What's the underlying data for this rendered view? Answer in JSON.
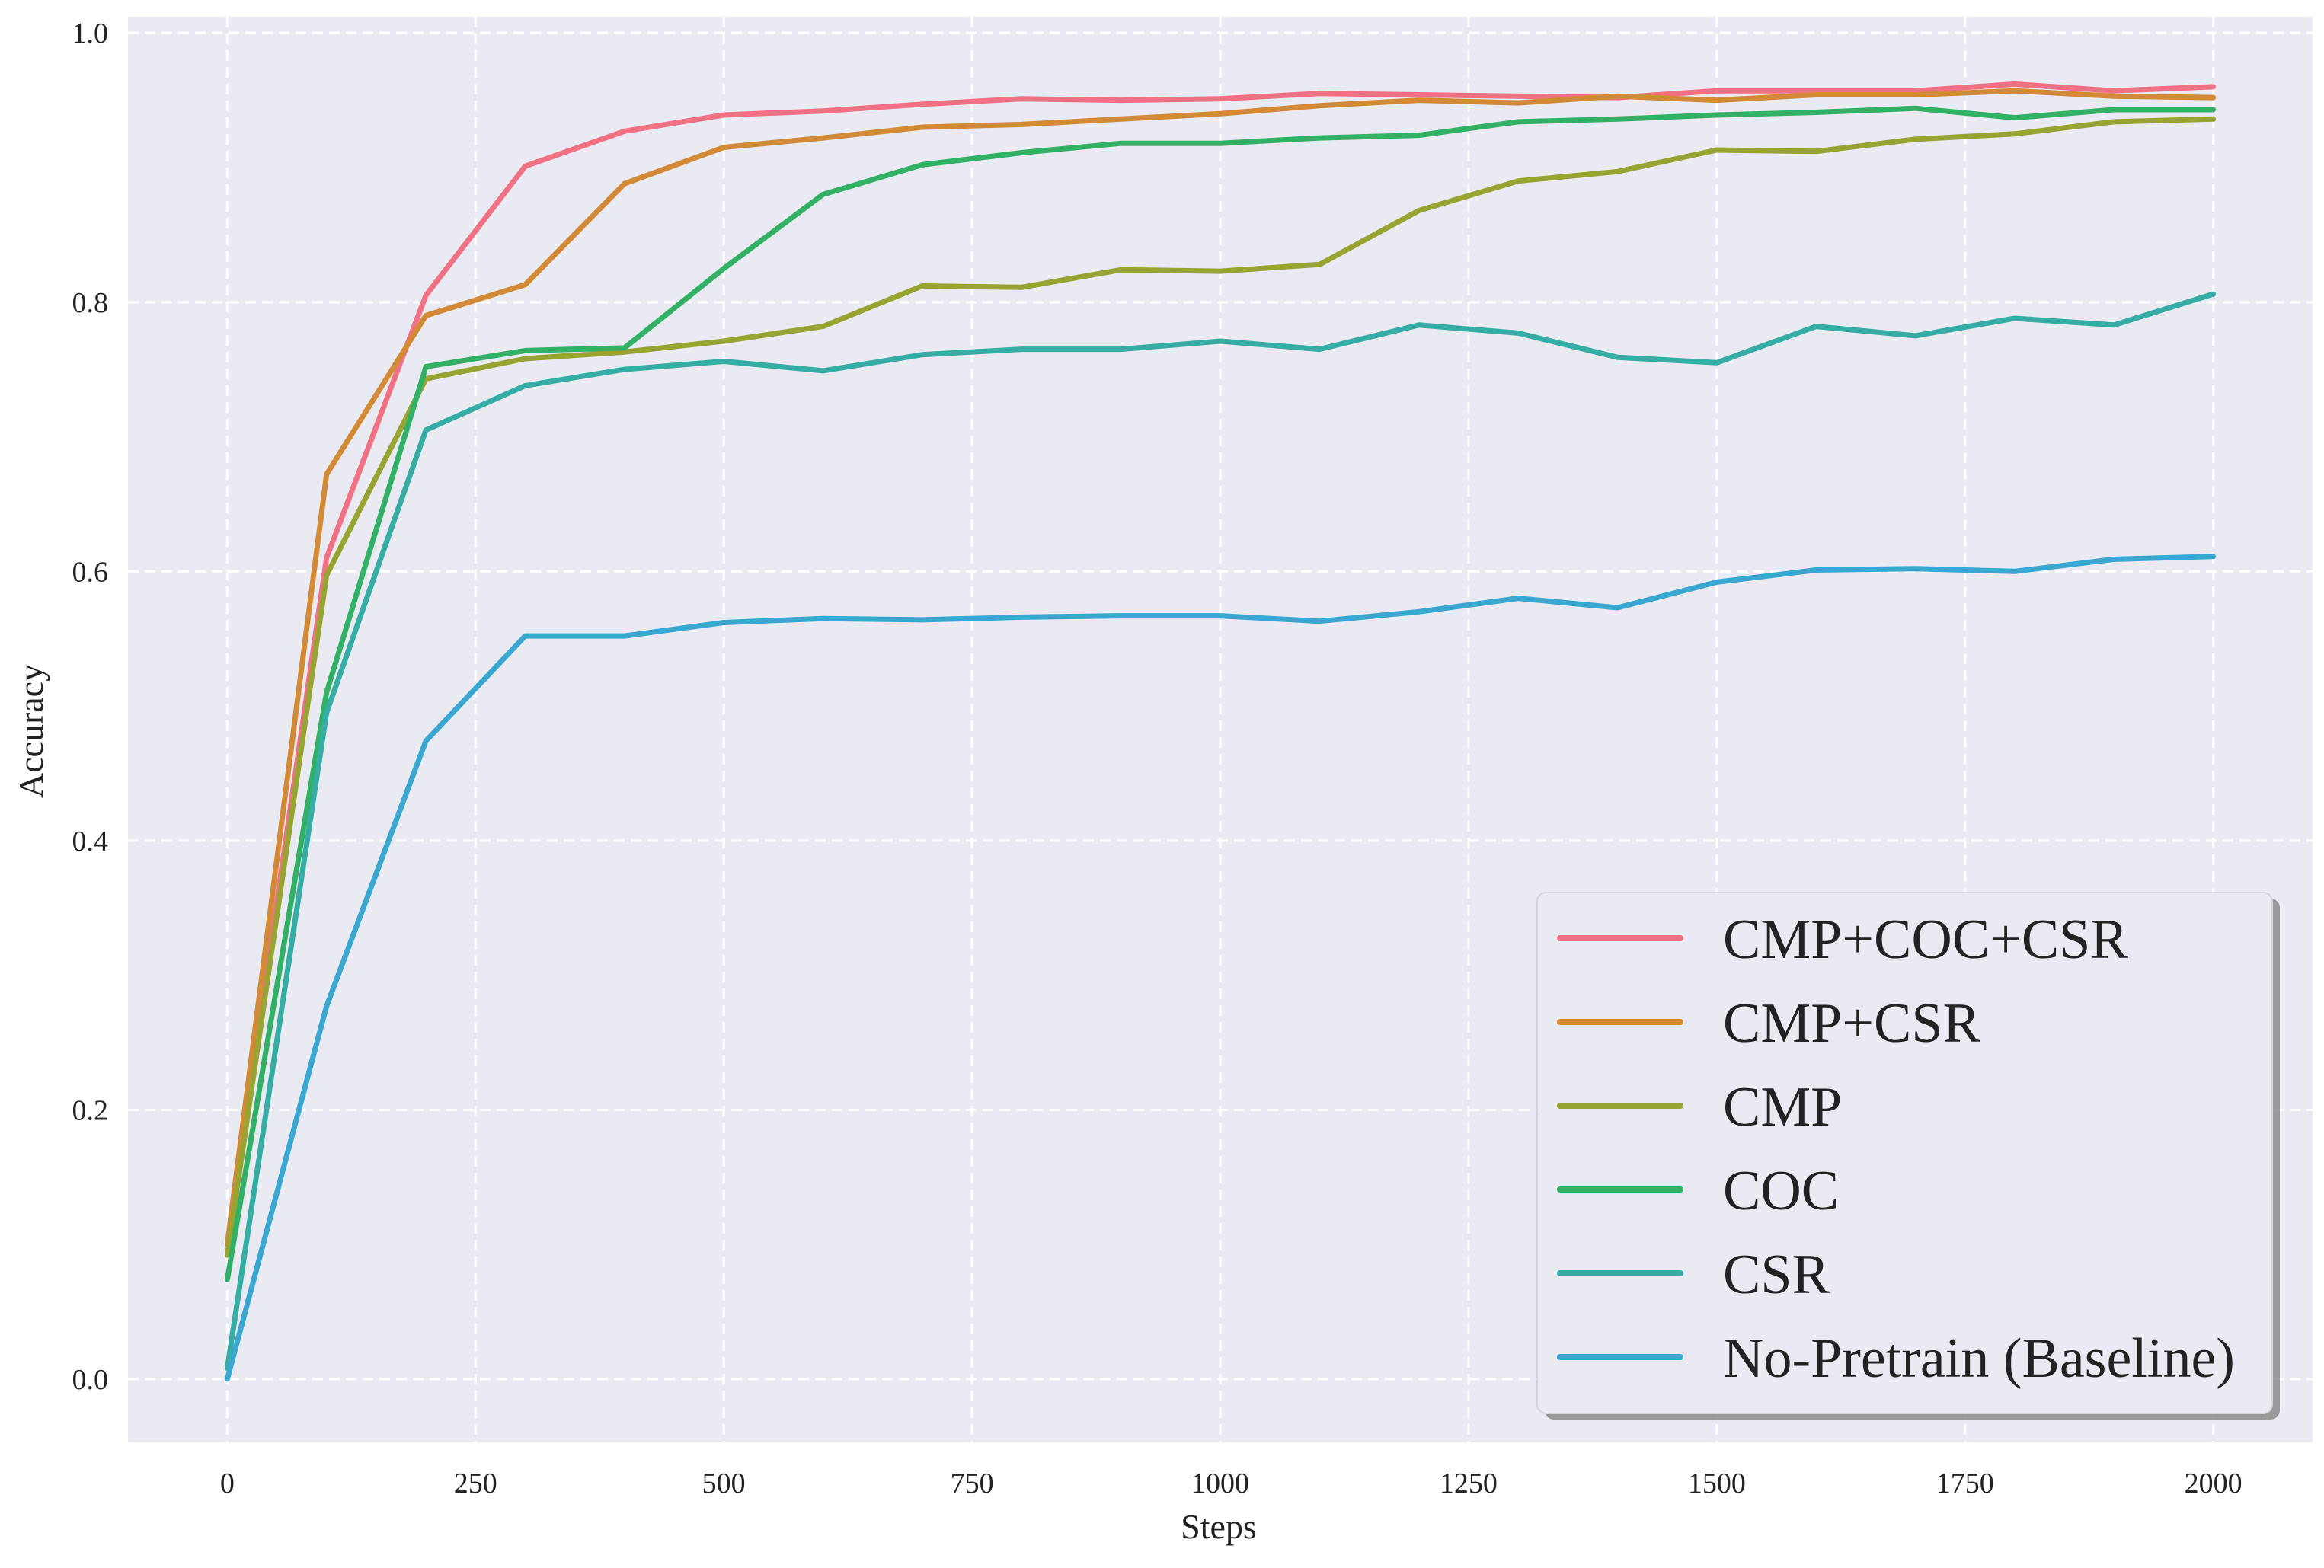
{
  "chart_data": {
    "type": "line",
    "xlabel": "Steps",
    "ylabel": "Accuracy",
    "xlim": [
      -100,
      2100
    ],
    "ylim": [
      -0.047,
      1.012
    ],
    "xticks": [
      0,
      250,
      500,
      750,
      1000,
      1250,
      1500,
      1750,
      2000
    ],
    "yticks": [
      0.0,
      0.2,
      0.4,
      0.6,
      0.8,
      1.0
    ],
    "xtick_labels": [
      "0",
      "250",
      "500",
      "750",
      "1000",
      "1250",
      "1500",
      "1750",
      "2000"
    ],
    "ytick_labels": [
      "0.0",
      "0.2",
      "0.4",
      "0.6",
      "0.8",
      "1.0"
    ],
    "grid": true,
    "legend_position": "bottom-right",
    "background": "#eaeaf2",
    "x": [
      0,
      100,
      200,
      300,
      400,
      500,
      600,
      700,
      800,
      900,
      1000,
      1100,
      1200,
      1300,
      1400,
      1500,
      1600,
      1700,
      1800,
      1900,
      2000
    ],
    "series": [
      {
        "name": "CMP+COC+CSR",
        "color": "#f07084",
        "values": [
          0.1,
          0.61,
          0.805,
          0.901,
          0.927,
          0.939,
          0.942,
          0.947,
          0.951,
          0.95,
          0.951,
          0.955,
          0.954,
          0.953,
          0.952,
          0.957,
          0.957,
          0.957,
          0.962,
          0.957,
          0.96
        ]
      },
      {
        "name": "CMP+CSR",
        "color": "#d38a37",
        "values": [
          0.1,
          0.672,
          0.79,
          0.813,
          0.888,
          0.915,
          0.922,
          0.93,
          0.932,
          0.936,
          0.94,
          0.946,
          0.95,
          0.948,
          0.953,
          0.95,
          0.954,
          0.954,
          0.957,
          0.953,
          0.952
        ]
      },
      {
        "name": "CMP",
        "color": "#97a431",
        "values": [
          0.092,
          0.597,
          0.743,
          0.758,
          0.763,
          0.771,
          0.782,
          0.812,
          0.811,
          0.824,
          0.823,
          0.828,
          0.868,
          0.89,
          0.897,
          0.913,
          0.912,
          0.921,
          0.925,
          0.934,
          0.936
        ]
      },
      {
        "name": "COC",
        "color": "#32b166",
        "values": [
          0.074,
          0.51,
          0.752,
          0.764,
          0.766,
          0.825,
          0.88,
          0.902,
          0.911,
          0.918,
          0.918,
          0.922,
          0.924,
          0.934,
          0.936,
          0.939,
          0.941,
          0.944,
          0.937,
          0.943,
          0.943
        ]
      },
      {
        "name": "CSR",
        "color": "#36ada4",
        "values": [
          0.008,
          0.495,
          0.705,
          0.738,
          0.75,
          0.756,
          0.749,
          0.761,
          0.765,
          0.765,
          0.771,
          0.765,
          0.783,
          0.777,
          0.759,
          0.755,
          0.782,
          0.775,
          0.788,
          0.783,
          0.806
        ]
      },
      {
        "name": "No-Pretrain (Baseline)",
        "color": "#39a7d0",
        "values": [
          0.0,
          0.277,
          0.474,
          0.552,
          0.552,
          0.562,
          0.565,
          0.564,
          0.566,
          0.567,
          0.567,
          0.563,
          0.57,
          0.58,
          0.573,
          0.592,
          0.601,
          0.602,
          0.6,
          0.609,
          0.611
        ]
      }
    ]
  }
}
